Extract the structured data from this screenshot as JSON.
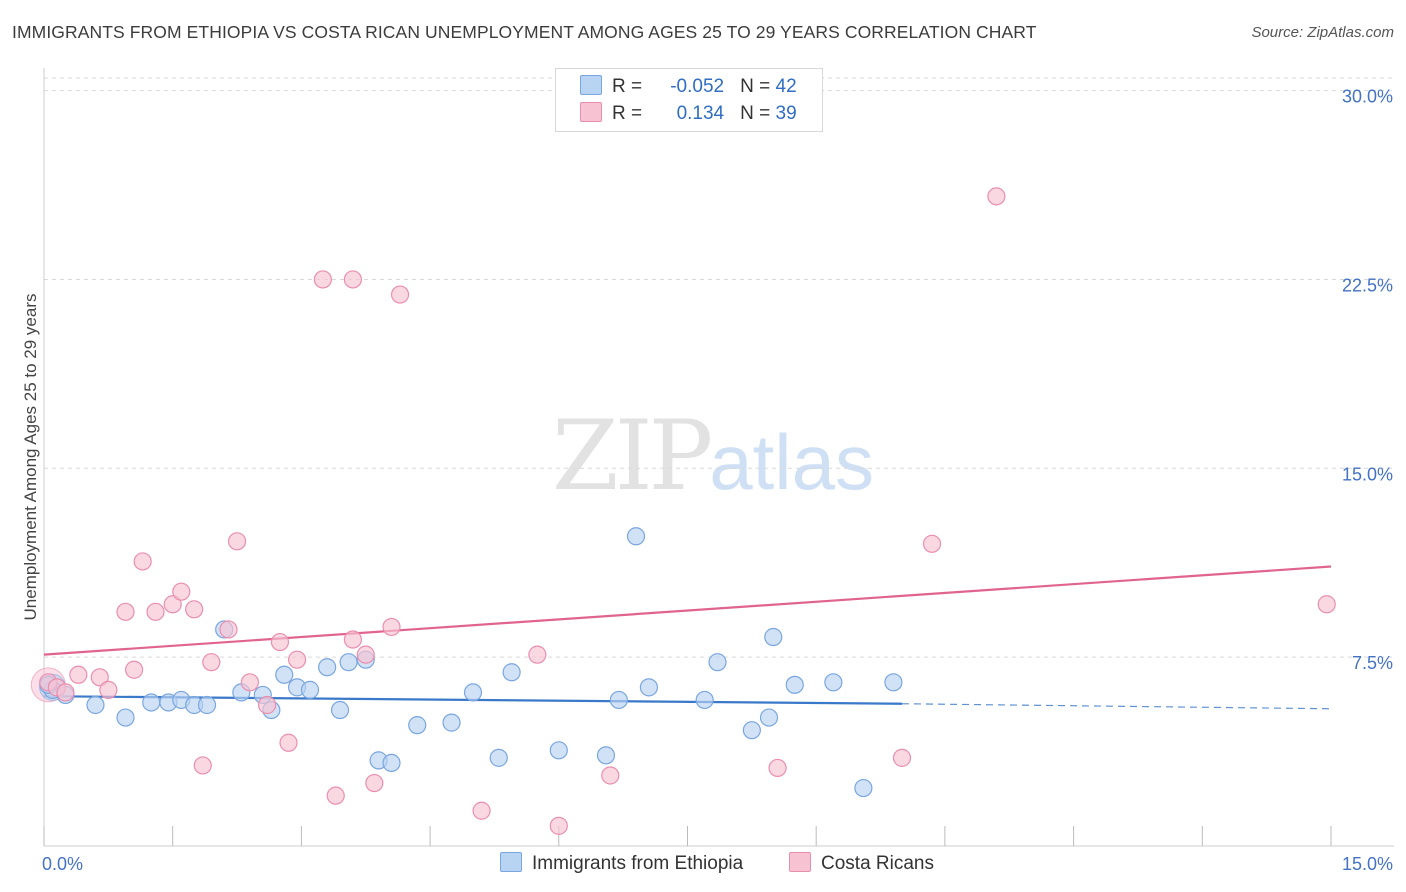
{
  "title": "IMMIGRANTS FROM ETHIOPIA VS COSTA RICAN UNEMPLOYMENT AMONG AGES 25 TO 29 YEARS CORRELATION CHART",
  "source": "Source: ZipAtlas.com",
  "watermark": {
    "zip": "ZIP",
    "atlas": "atlas"
  },
  "legend": {
    "rows": [
      {
        "r_label": "R =",
        "r_value": "-0.052",
        "n_label": "N =",
        "n_value": "42"
      },
      {
        "r_label": "R =",
        "r_value": "0.134",
        "n_label": "N =",
        "n_value": "39"
      }
    ]
  },
  "colors": {
    "ethiopia_fill": "#b9d3f2",
    "ethiopia_stroke": "#7aa6df",
    "ethiopia_line": "#3a78c9",
    "costa_fill": "#f7c3d3",
    "costa_stroke": "#ea8eaf",
    "costa_line": "#e0648f",
    "grid": "#d9d9d9",
    "tick_text": "#4472c4"
  },
  "chart_data": {
    "type": "scatter",
    "title": "IMMIGRANTS FROM ETHIOPIA VS COSTA RICAN UNEMPLOYMENT AMONG AGES 25 TO 29 YEARS CORRELATION CHART",
    "xlabel": "",
    "ylabel": "Unemployment Among Ages 25 to 29 years",
    "xlim": [
      0,
      15
    ],
    "ylim": [
      0,
      30.5
    ],
    "x_tick_labels": [
      "0.0%",
      "15.0%"
    ],
    "y_ticks": [
      7.5,
      15.0,
      22.5,
      30.0
    ],
    "y_tick_labels": [
      "7.5%",
      "15.0%",
      "22.5%",
      "30.0%"
    ],
    "grid": true,
    "legend_position": "bottom",
    "series": [
      {
        "name": "Immigrants from Ethiopia",
        "points": [
          [
            0.1,
            6.2
          ],
          [
            0.25,
            6.0
          ],
          [
            0.6,
            5.6
          ],
          [
            0.95,
            5.1
          ],
          [
            1.25,
            5.7
          ],
          [
            1.45,
            5.7
          ],
          [
            1.6,
            5.8
          ],
          [
            1.75,
            5.6
          ],
          [
            1.9,
            5.6
          ],
          [
            2.1,
            8.6
          ],
          [
            2.3,
            6.1
          ],
          [
            2.55,
            6.0
          ],
          [
            2.65,
            5.4
          ],
          [
            2.8,
            6.8
          ],
          [
            2.95,
            6.3
          ],
          [
            3.1,
            6.2
          ],
          [
            3.3,
            7.1
          ],
          [
            3.45,
            5.4
          ],
          [
            3.55,
            7.3
          ],
          [
            3.75,
            7.4
          ],
          [
            3.9,
            3.4
          ],
          [
            4.05,
            3.3
          ],
          [
            4.35,
            4.8
          ],
          [
            4.75,
            4.9
          ],
          [
            5.0,
            6.1
          ],
          [
            5.3,
            3.5
          ],
          [
            5.45,
            6.9
          ],
          [
            6.0,
            3.8
          ],
          [
            6.55,
            3.6
          ],
          [
            6.7,
            5.8
          ],
          [
            6.9,
            12.3
          ],
          [
            7.05,
            6.3
          ],
          [
            7.7,
            5.8
          ],
          [
            7.85,
            7.3
          ],
          [
            8.25,
            4.6
          ],
          [
            8.45,
            5.1
          ],
          [
            8.5,
            8.3
          ],
          [
            8.75,
            6.4
          ],
          [
            9.2,
            6.5
          ],
          [
            9.55,
            2.3
          ],
          [
            9.9,
            6.5
          ],
          [
            0.05,
            6.4
          ]
        ],
        "trend_solid": [
          [
            0,
            5.95
          ],
          [
            10.0,
            5.65
          ]
        ],
        "trend_dashed": [
          [
            10.0,
            5.65
          ],
          [
            15.7,
            5.45
          ]
        ]
      },
      {
        "name": "Costa Ricans",
        "points": [
          [
            0.05,
            6.5
          ],
          [
            0.15,
            6.3
          ],
          [
            0.4,
            6.8
          ],
          [
            0.65,
            6.7
          ],
          [
            0.75,
            6.2
          ],
          [
            0.95,
            9.3
          ],
          [
            1.05,
            7.0
          ],
          [
            1.15,
            11.3
          ],
          [
            1.3,
            9.3
          ],
          [
            1.5,
            9.6
          ],
          [
            1.6,
            10.1
          ],
          [
            1.75,
            9.4
          ],
          [
            1.85,
            3.2
          ],
          [
            1.95,
            7.3
          ],
          [
            2.15,
            8.6
          ],
          [
            2.25,
            12.1
          ],
          [
            2.4,
            6.5
          ],
          [
            2.6,
            5.6
          ],
          [
            2.75,
            8.1
          ],
          [
            2.85,
            4.1
          ],
          [
            2.95,
            7.4
          ],
          [
            3.25,
            22.5
          ],
          [
            3.6,
            22.5
          ],
          [
            3.4,
            2.0
          ],
          [
            3.6,
            8.2
          ],
          [
            3.75,
            7.6
          ],
          [
            3.85,
            2.5
          ],
          [
            4.05,
            8.7
          ],
          [
            4.15,
            21.9
          ],
          [
            5.1,
            1.4
          ],
          [
            5.75,
            7.6
          ],
          [
            6.0,
            0.8
          ],
          [
            6.6,
            2.8
          ],
          [
            8.55,
            3.1
          ],
          [
            10.0,
            3.5
          ],
          [
            10.35,
            12.0
          ],
          [
            11.1,
            25.8
          ],
          [
            14.95,
            9.6
          ],
          [
            0.25,
            6.1
          ]
        ],
        "trend_solid": [
          [
            0,
            7.6
          ],
          [
            15.0,
            11.1
          ]
        ]
      }
    ]
  },
  "bottom_legend": [
    {
      "label": "Immigrants from Ethiopia"
    },
    {
      "label": "Costa Ricans"
    }
  ]
}
